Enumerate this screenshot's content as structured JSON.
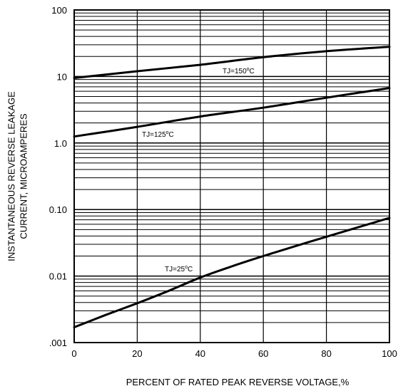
{
  "chart_data": {
    "type": "line",
    "xlabel": "PERCENT OF RATED PEAK REVERSE VOLTAGE,%",
    "ylabel_line1": "INSTANTANEOUS REVERSE LEAKAGE",
    "ylabel_line2": "CURRENT, MICROAMPERES",
    "xlim": [
      0,
      100
    ],
    "ylim": [
      0.001,
      100
    ],
    "y_scale": "log",
    "grid": true,
    "x_ticks": [
      0,
      20,
      40,
      60,
      80,
      100
    ],
    "x_tick_labels": [
      "0",
      "20",
      "40",
      "60",
      "80",
      "100"
    ],
    "y_ticks": [
      0.001,
      0.01,
      0.1,
      1,
      10,
      100
    ],
    "y_tick_labels": [
      ".001",
      "0.01",
      "0.10",
      "1.0",
      "10",
      "100"
    ],
    "series": [
      {
        "name": "TJ=150°C",
        "label_text": "TJ=150",
        "label_sup": "o",
        "label_suffix": "C",
        "x": [
          0,
          20,
          40,
          60,
          80,
          100
        ],
        "values": [
          9.5,
          12,
          15,
          19.5,
          24,
          28
        ]
      },
      {
        "name": "TJ=125°C",
        "label_text": "TJ=125",
        "label_sup": "o",
        "label_suffix": "C",
        "x": [
          0,
          20,
          40,
          60,
          80,
          100
        ],
        "values": [
          1.25,
          1.75,
          2.5,
          3.4,
          4.8,
          6.7
        ]
      },
      {
        "name": "TJ=25°C",
        "label_text": "TJ=25",
        "label_sup": "o",
        "label_suffix": "C",
        "x": [
          0,
          10,
          20,
          30,
          40,
          50,
          60,
          70,
          80,
          90,
          100
        ],
        "values": [
          0.0017,
          0.0026,
          0.0039,
          0.006,
          0.0095,
          0.014,
          0.02,
          0.028,
          0.039,
          0.054,
          0.075
        ]
      }
    ]
  }
}
